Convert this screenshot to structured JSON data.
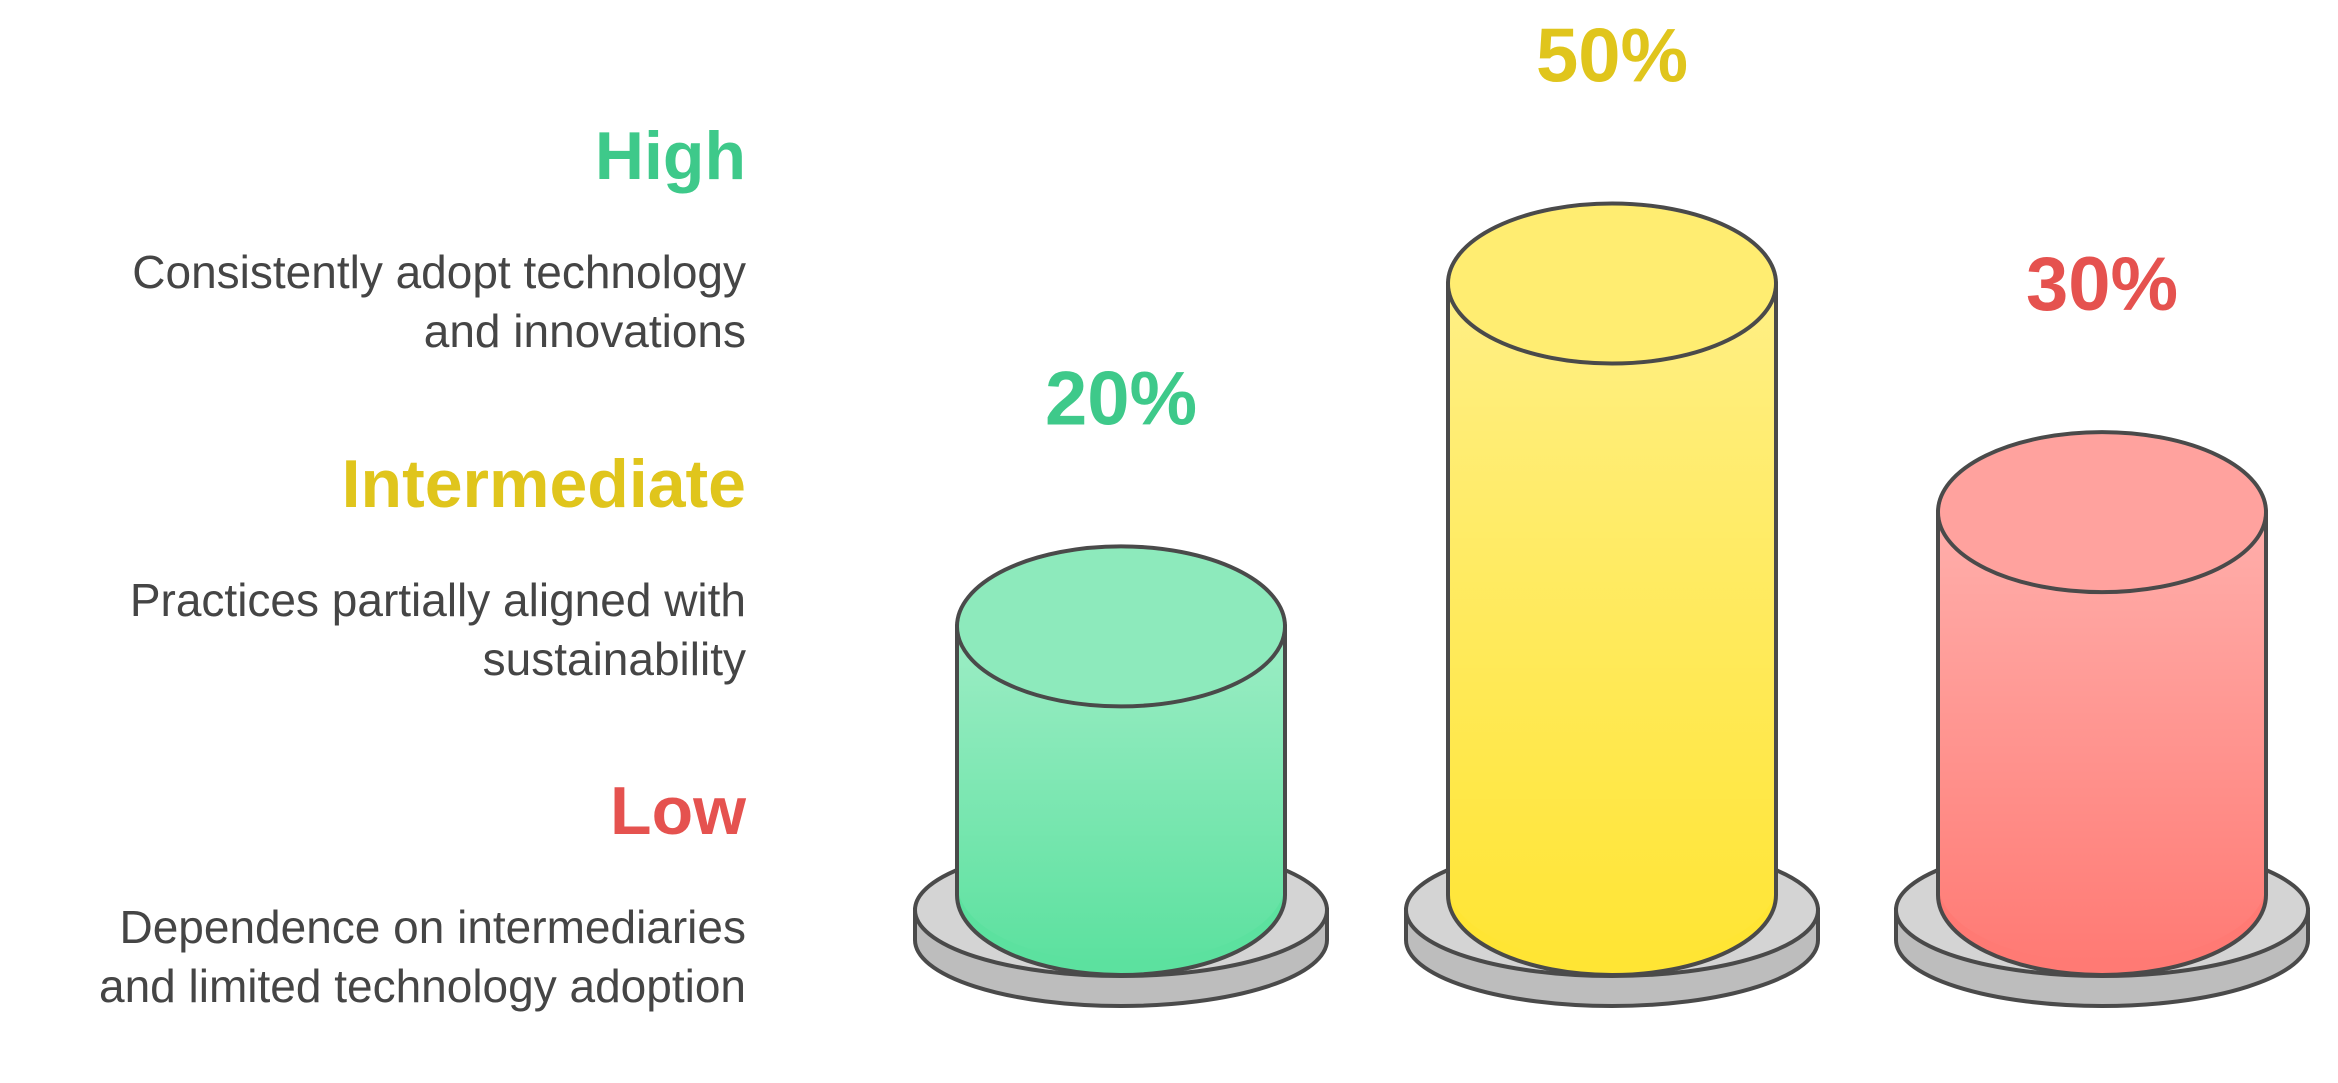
{
  "chart_data": {
    "type": "bar",
    "categories": [
      "High",
      "Intermediate",
      "Low"
    ],
    "descriptions": [
      [
        "Consistently adopt technology",
        "and innovations"
      ],
      [
        "Practices partially aligned with",
        "sustainability"
      ],
      [
        "Dependence on intermediaries",
        "and limited technology adoption"
      ]
    ],
    "values": [
      20,
      50,
      30
    ],
    "value_labels": [
      "20%",
      "50%",
      "30%"
    ],
    "colors": [
      "#3ec98a",
      "#e0c51c",
      "#e5524f"
    ],
    "bar_colors": [
      "#5ce19f",
      "#ffe534",
      "#ff7a74"
    ]
  }
}
